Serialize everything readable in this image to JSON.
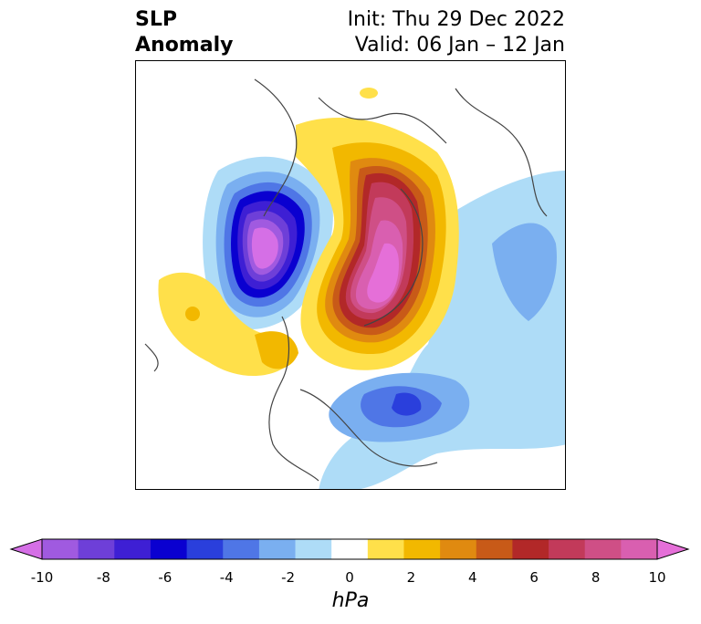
{
  "title": {
    "left_line1": "SLP",
    "left_line2": "Anomaly",
    "right_line1": "Init: Thu 29 Dec 2022",
    "right_line2": "Valid: 06 Jan – 12 Jan"
  },
  "colorbar": {
    "unit": "hPa",
    "ticks": [
      "-10",
      "-8",
      "-6",
      "-4",
      "-2",
      "0",
      "2",
      "4",
      "6",
      "8",
      "10"
    ],
    "colors": [
      "#d56fe6",
      "#a05ae0",
      "#6e3fd8",
      "#3e1fd4",
      "#0a00d0",
      "#2a3fdc",
      "#4f76e6",
      "#7aaff0",
      "#aedcf7",
      "#ffffff",
      "#ffe04a",
      "#f2b800",
      "#e08a10",
      "#c85a18",
      "#b22828",
      "#c23a5a",
      "#cf4f86",
      "#d95fb0",
      "#e56fd8"
    ]
  },
  "map": {
    "projection": "polar stereographic",
    "field": "sea level pressure anomaly"
  }
}
